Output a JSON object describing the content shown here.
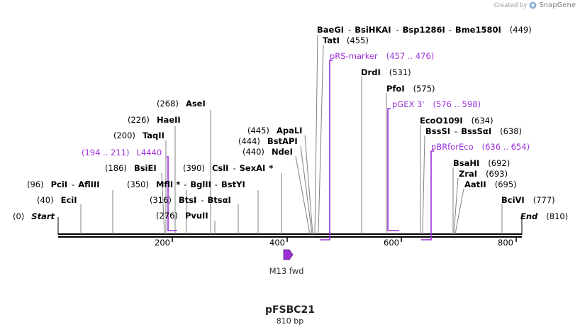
{
  "credit": {
    "created_by": "Created by",
    "brand": "SnapGene"
  },
  "plasmid": {
    "name": "pFSBC21",
    "length_label": "810 bp"
  },
  "ends": {
    "start": {
      "label": "Start",
      "pos": "(0)"
    },
    "end": {
      "label": "End",
      "pos": "(810)"
    }
  },
  "ruler": {
    "ticks": [
      "200",
      "400",
      "600",
      "800"
    ]
  },
  "sites": [
    {
      "name": "EciI",
      "pos": "(40)"
    },
    {
      "name": "PciI",
      "sep": "-",
      "name2": "AflIII",
      "pos": "(96)"
    },
    {
      "name": "BsiEI",
      "pos": "(186)"
    },
    {
      "name": "TaqII",
      "pos": "(200)"
    },
    {
      "name": "HaeII",
      "pos": "(226)"
    },
    {
      "name": "AseI",
      "pos": "(268)"
    },
    {
      "name": "PvuII",
      "pos": "(276)"
    },
    {
      "name": "BtsI",
      "sep": "-",
      "name2": "BtsαI",
      "pos": "(316)"
    },
    {
      "name": "MflI",
      "star": "*",
      "sep": "-",
      "name2": "BglII",
      "sep2": "-",
      "name3": "BstYI",
      "pos": "(350)"
    },
    {
      "name": "CslI",
      "sep": "-",
      "name2": "SexAI",
      "star": "*",
      "pos": "(390)"
    },
    {
      "name": "NdeI",
      "pos": "(440)"
    },
    {
      "name": "BstAPI",
      "pos": "(444)"
    },
    {
      "name": "ApaLI",
      "pos": "(445)"
    },
    {
      "name": "BaeGI",
      "sep": "-",
      "name2": "BsiHKAI",
      "sep2": "-",
      "name3": "Bsp1286I",
      "sep3": "-",
      "name4": "Bme1580I",
      "pos": "(449)"
    },
    {
      "name": "TatI",
      "pos": "(455)"
    },
    {
      "name": "DrdI",
      "pos": "(531)"
    },
    {
      "name": "PfoI",
      "pos": "(575)"
    },
    {
      "name": "EcoO109I",
      "pos": "(634)"
    },
    {
      "name": "BssSI",
      "sep": "-",
      "name2": "BssSαI",
      "pos": "(638)"
    },
    {
      "name": "BsaHI",
      "pos": "(692)"
    },
    {
      "name": "ZraI",
      "pos": "(693)"
    },
    {
      "name": "AatII",
      "pos": "(695)"
    },
    {
      "name": "BciVI",
      "pos": "(777)"
    }
  ],
  "features": [
    {
      "name": "L4440",
      "range": "(194 .. 211)"
    },
    {
      "name": "pRS-marker",
      "range": "(457 .. 476)"
    },
    {
      "name": "pGEX 3'",
      "range": "(576 .. 598)"
    },
    {
      "name": "pBRforEco",
      "range": "(636 .. 654)"
    },
    {
      "name": "M13 fwd",
      "range": ""
    }
  ],
  "colors": {
    "feature": "#9b30d9",
    "m13_fill": "#9b30d9",
    "line": "#000000",
    "site_line": "#808080"
  }
}
